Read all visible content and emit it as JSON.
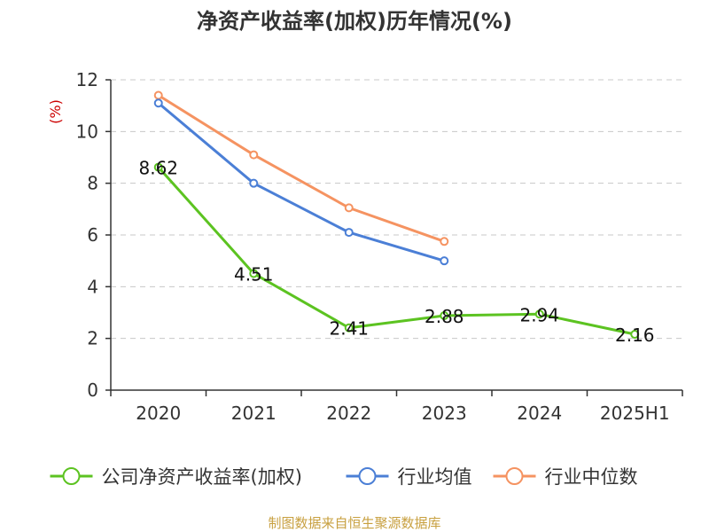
{
  "source_text": "制图数据来自恒生聚源数据库",
  "chart_data": {
    "type": "line",
    "title": "净资产收益率(加权)历年情况(%)",
    "ylabel": "(%)",
    "xlabel": "",
    "categories": [
      "2020",
      "2021",
      "2022",
      "2023",
      "2024",
      "2025H1"
    ],
    "ylim": [
      0,
      12
    ],
    "yticks": [
      0,
      2,
      4,
      6,
      8,
      10,
      12
    ],
    "grid": true,
    "legend_position": "bottom",
    "series": [
      {
        "name": "公司净资产收益率(加权)",
        "color": "#5cc321",
        "values": [
          8.62,
          4.51,
          2.41,
          2.88,
          2.94,
          2.16
        ],
        "labels": [
          "8.62",
          "4.51",
          "2.41",
          "2.88",
          "2.94",
          "2.16"
        ]
      },
      {
        "name": "行业均值",
        "color": "#4b7fd6",
        "values": [
          11.1,
          8.0,
          6.1,
          5.0,
          null,
          null
        ]
      },
      {
        "name": "行业中位数",
        "color": "#f59361",
        "values": [
          11.4,
          9.1,
          7.05,
          5.75,
          null,
          null
        ]
      }
    ]
  }
}
